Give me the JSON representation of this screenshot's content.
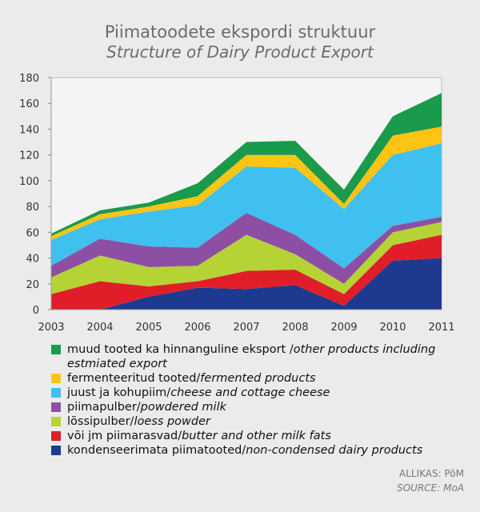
{
  "title_et": "Piimatoodete ekspordi struktuur",
  "title_en": "Structure of Dairy Product Export",
  "source_et": "ALLIKAS: PõM",
  "source_en": "SOURCE: MoA",
  "chart_data": {
    "type": "area",
    "stacked": true,
    "categories": [
      "2003",
      "2004",
      "2005",
      "2006",
      "2007",
      "2008",
      "2009",
      "2010",
      "2011"
    ],
    "ylim": [
      0,
      180
    ],
    "yticks": [
      0,
      20,
      40,
      60,
      80,
      100,
      120,
      140,
      160,
      180
    ],
    "grid": false,
    "series": [
      {
        "name_et": "kondenseerimata piimatooted/",
        "name_en": "non-condensed dairy products",
        "color": "#1e3a8f",
        "values": [
          0,
          0,
          10,
          17,
          16,
          19,
          3,
          38,
          40
        ]
      },
      {
        "name_et": "või jm piimarasvad/",
        "name_en": "butter and other milk fats",
        "color": "#e01e2a",
        "values": [
          12,
          22,
          8,
          5,
          14,
          12,
          9,
          12,
          18
        ]
      },
      {
        "name_et": "lõssipulber/",
        "name_en": "loess powder",
        "color": "#b5d335",
        "values": [
          13,
          20,
          15,
          12,
          28,
          12,
          8,
          10,
          10
        ]
      },
      {
        "name_et": "piimapulber/",
        "name_en": "powdered milk",
        "color": "#8d4fa3",
        "values": [
          9,
          13,
          16,
          14,
          17,
          15,
          12,
          5,
          4
        ]
      },
      {
        "name_et": "juust ja kohupiim/",
        "name_en": "cheese and cottage cheese",
        "color": "#3fc0ef",
        "values": [
          20,
          15,
          27,
          33,
          36,
          52,
          46,
          55,
          57
        ]
      },
      {
        "name_et": "fermenteeritud tooted/",
        "name_en": "fermented products",
        "color": "#fdc414",
        "values": [
          3,
          4,
          4,
          7,
          9,
          10,
          4,
          15,
          13
        ]
      },
      {
        "name_et": "muud tooted ka hinnanguline eksport /",
        "name_en": "other products including estmiated export",
        "color": "#1a9a4b",
        "values": [
          2,
          3,
          3,
          10,
          10,
          11,
          11,
          15,
          26
        ]
      }
    ]
  }
}
